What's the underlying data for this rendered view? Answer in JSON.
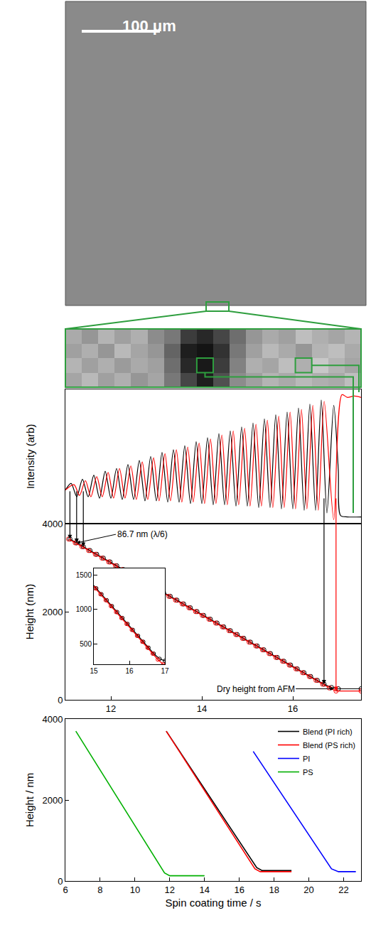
{
  "image": {
    "scale_bar": "100 μm"
  },
  "zoom": {
    "type": "heatmap",
    "zlim": [
      0,
      255
    ],
    "cells": [
      [
        170,
        150,
        180,
        160,
        175,
        140,
        120,
        60,
        40,
        70,
        110,
        150,
        170,
        160,
        190,
        175,
        165,
        180
      ],
      [
        160,
        175,
        150,
        185,
        165,
        150,
        100,
        30,
        20,
        50,
        120,
        160,
        185,
        170,
        150,
        180,
        190,
        170
      ],
      [
        180,
        160,
        175,
        155,
        170,
        160,
        110,
        40,
        25,
        60,
        130,
        175,
        165,
        190,
        175,
        200,
        180,
        165
      ],
      [
        165,
        185,
        160,
        175,
        150,
        165,
        120,
        70,
        30,
        80,
        140,
        160,
        180,
        170,
        185,
        175,
        170,
        190
      ]
    ]
  },
  "chart_data": [
    {
      "type": "line",
      "y_label": "Intensity (arb)",
      "xlim": [
        11,
        17.5
      ],
      "ylim": [
        0,
        100
      ],
      "tick_labels": false,
      "grid": false,
      "series": [
        {
          "color": "#000000",
          "line_style": "solid",
          "x": [
            11.0,
            11.125,
            11.25,
            11.375,
            11.5,
            11.625,
            11.75,
            11.875,
            12.0,
            12.125,
            12.25,
            12.375,
            12.5,
            12.625,
            12.75,
            12.875,
            13.0,
            13.125,
            13.25,
            13.375,
            13.5,
            13.625,
            13.75,
            13.875,
            14.0,
            14.125,
            14.25,
            14.375,
            14.5,
            14.625,
            14.75,
            14.875,
            15.0,
            15.125,
            15.25,
            15.375,
            15.5,
            15.625,
            15.75,
            15.875,
            16.0,
            16.125,
            16.25,
            16.375,
            16.5,
            16.625,
            16.75,
            16.9,
            17.0,
            17.05,
            17.2,
            17.5
          ],
          "values": [
            25,
            30,
            20,
            33,
            20,
            36,
            19,
            39,
            19,
            41,
            18,
            44,
            18,
            47,
            17,
            50,
            17,
            53,
            16,
            55,
            16,
            58,
            15,
            61,
            15,
            64,
            14,
            67,
            14,
            69,
            13,
            72,
            13,
            75,
            12,
            78,
            12,
            81,
            11,
            83,
            11,
            86,
            10,
            89,
            10,
            92,
            8,
            88,
            40,
            6,
            5,
            5
          ]
        },
        {
          "color": "#ff0000",
          "line_style": "solid",
          "x": [
            11.0,
            11.19,
            11.31,
            11.44,
            11.56,
            11.69,
            11.81,
            11.94,
            12.06,
            12.19,
            12.31,
            12.44,
            12.56,
            12.69,
            12.81,
            12.94,
            13.06,
            13.19,
            13.31,
            13.44,
            13.56,
            13.69,
            13.81,
            13.94,
            14.06,
            14.19,
            14.31,
            14.44,
            14.56,
            14.69,
            14.81,
            14.94,
            15.06,
            15.19,
            15.31,
            15.44,
            15.56,
            15.69,
            15.81,
            15.94,
            16.06,
            16.19,
            16.31,
            16.44,
            16.56,
            16.69,
            16.9,
            17.08,
            17.2,
            17.35,
            17.5
          ],
          "values": [
            25,
            29,
            21,
            32,
            20,
            35,
            20,
            38,
            19,
            41,
            19,
            43,
            18,
            46,
            18,
            49,
            17,
            52,
            17,
            55,
            16,
            57,
            16,
            60,
            15,
            63,
            15,
            66,
            14,
            69,
            14,
            71,
            13,
            74,
            13,
            77,
            12,
            80,
            12,
            83,
            11,
            85,
            11,
            88,
            10,
            91,
            3,
            96,
            94,
            95,
            94
          ]
        }
      ]
    },
    {
      "type": "line",
      "y_label": "Height (nm)",
      "xlim": [
        11,
        17.5
      ],
      "ylim": [
        0,
        4000
      ],
      "xticks": [
        12,
        14,
        16
      ],
      "yticks": [
        0,
        2000,
        4000
      ],
      "grid": false,
      "annotations": [
        {
          "text": "86.7 nm (λ/6)",
          "x": 11.25,
          "y": 3563.3
        },
        {
          "text": "Dry height from AFM",
          "x": 16.9,
          "y": 250
        }
      ],
      "inset": {
        "xlim": [
          15,
          17
        ],
        "ylim": [
          200,
          1600
        ],
        "xticks": [
          15,
          16,
          17
        ],
        "yticks": [
          500,
          1000,
          1500
        ]
      },
      "series": [
        {
          "color": "#000000",
          "marker": "circle-open",
          "line_style": "solid",
          "x": [
            11.1,
            11.247,
            11.394,
            11.541,
            11.688,
            11.835,
            11.982,
            12.129,
            12.276,
            12.423,
            12.57,
            12.717,
            12.864,
            13.011,
            13.158,
            13.305,
            13.452,
            13.599,
            13.746,
            13.893,
            14.04,
            14.187,
            14.334,
            14.481,
            14.628,
            14.775,
            14.922,
            15.069,
            15.216,
            15.363,
            15.51,
            15.657,
            15.804,
            15.951,
            16.098,
            16.245,
            16.392,
            16.539,
            16.686,
            16.85,
            17.0,
            17.5
          ],
          "values": [
            3650,
            3563.3,
            3476.6,
            3389.9,
            3303.2,
            3216.5,
            3129.8,
            3043.1,
            2956.4,
            2869.7,
            2783,
            2696.3,
            2609.6,
            2522.9,
            2436.2,
            2349.5,
            2262.8,
            2176.1,
            2089.4,
            2002.7,
            1916,
            1829.3,
            1742.6,
            1655.9,
            1569.2,
            1482.5,
            1395.8,
            1309.1,
            1222.4,
            1135.7,
            1049,
            962.3,
            875.6,
            788.9,
            702.2,
            615.5,
            528.8,
            442.1,
            355.4,
            280,
            250,
            250
          ]
        },
        {
          "color": "#ff0000",
          "marker": "circle-open",
          "line_style": "solid",
          "x": [
            11.07,
            11.217,
            11.364,
            11.511,
            11.658,
            11.805,
            11.952,
            12.099,
            12.246,
            12.393,
            12.54,
            12.687,
            12.834,
            12.981,
            13.128,
            13.275,
            13.422,
            13.569,
            13.716,
            13.863,
            14.01,
            14.157,
            14.304,
            14.451,
            14.598,
            14.745,
            14.892,
            15.039,
            15.186,
            15.333,
            15.48,
            15.627,
            15.774,
            15.921,
            16.068,
            16.215,
            16.362,
            16.509,
            16.656,
            16.8,
            16.95,
            17.5
          ],
          "values": [
            3650,
            3563.3,
            3476.6,
            3389.9,
            3303.2,
            3216.5,
            3129.8,
            3043.1,
            2956.4,
            2869.7,
            2783,
            2696.3,
            2609.6,
            2522.9,
            2436.2,
            2349.5,
            2262.8,
            2176.1,
            2089.4,
            2002.7,
            1916,
            1829.3,
            1742.6,
            1655.9,
            1569.2,
            1482.5,
            1395.8,
            1309.1,
            1222.4,
            1135.7,
            1049,
            962.3,
            875.6,
            788.9,
            702.2,
            615.5,
            528.8,
            442.1,
            355.4,
            270,
            200,
            200
          ]
        }
      ]
    },
    {
      "type": "line",
      "x_label": "Spin coating time / s",
      "y_label": "Height / nm",
      "xlim": [
        6,
        23
      ],
      "ylim": [
        0,
        4000
      ],
      "xticks": [
        6,
        8,
        10,
        12,
        14,
        16,
        18,
        20,
        22
      ],
      "yticks": [
        0,
        2000,
        4000
      ],
      "grid": false,
      "legend": "top right",
      "series": [
        {
          "name": "Blend (PI rich)",
          "color": "#000000",
          "line_style": "solid",
          "x": [
            11.8,
            17.0,
            17.3,
            19.0
          ],
          "values": [
            3700,
            330,
            260,
            260
          ]
        },
        {
          "name": "Blend (PS rich)",
          "color": "#ff0000",
          "line_style": "solid",
          "x": [
            11.8,
            16.9,
            17.2,
            19.0
          ],
          "values": [
            3700,
            300,
            230,
            230
          ]
        },
        {
          "name": "PI",
          "color": "#0000ff",
          "line_style": "solid",
          "x": [
            16.8,
            21.3,
            21.7,
            22.7
          ],
          "values": [
            3200,
            300,
            230,
            230
          ]
        },
        {
          "name": "PS",
          "color": "#00b000",
          "line_style": "solid",
          "x": [
            6.6,
            11.7,
            12.0,
            14.0
          ],
          "values": [
            3700,
            200,
            130,
            130
          ]
        }
      ]
    }
  ]
}
